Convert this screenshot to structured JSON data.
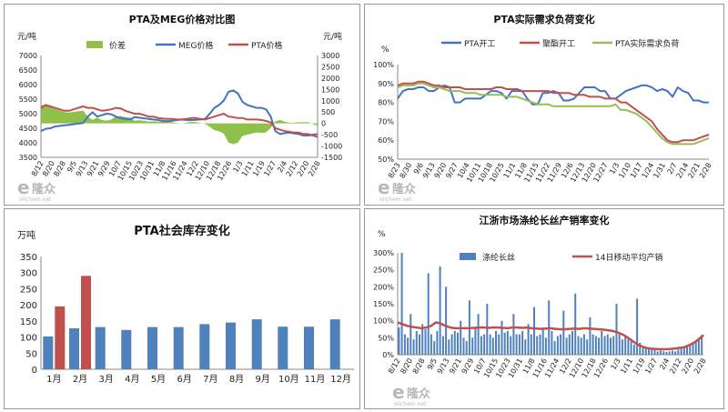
{
  "charts": {
    "price": {
      "type": "line",
      "title": "PTA及MEG价格对比图",
      "left_unit": "元/吨",
      "right_unit": "元/吨",
      "left_ylim": [
        3500,
        7000
      ],
      "left_ticks": [
        "7000",
        "6500",
        "6000",
        "5500",
        "5000",
        "4500",
        "4000",
        "3500"
      ],
      "right_ylim": [
        -1500,
        3000
      ],
      "right_ticks": [
        "3000",
        "2500",
        "2000",
        "1500",
        "1000",
        "500",
        "0",
        "-500",
        "-1000",
        "-1500"
      ],
      "x_labels": [
        "8/12",
        "8/20",
        "8/28",
        "9/5",
        "9/13",
        "9/21",
        "9/29",
        "10/7",
        "10/15",
        "10/23",
        "10/31",
        "11/8",
        "11/16",
        "11/24",
        "12/2",
        "12/10",
        "12/18",
        "12/26",
        "1/3",
        "1/11",
        "1/19",
        "1/27",
        "2/4",
        "2/12",
        "2/20",
        "2/28"
      ],
      "legend": [
        "价差",
        "MEG价格",
        "PTA价格"
      ],
      "colors": {
        "spread": "#8fc14a",
        "meg": "#4472c4",
        "pta": "#c0504d"
      },
      "series": [
        {
          "name": "MEG价格",
          "values": [
            4400,
            4480,
            4500,
            4560,
            4580,
            4600,
            4620,
            4640,
            4660,
            4680,
            4900,
            5050,
            4900,
            4950,
            5000,
            4980,
            4900,
            4850,
            4820,
            4800,
            4880,
            4860,
            4840,
            4820,
            4800,
            4780,
            4750,
            4740,
            4760,
            4780,
            4800,
            4780,
            4780,
            4790,
            4800,
            4820,
            5000,
            5200,
            5300,
            5450,
            5750,
            5800,
            5700,
            5400,
            5300,
            5250,
            5200,
            5200,
            5150,
            4900,
            4400,
            4300,
            4330,
            4350,
            4320,
            4300,
            4250,
            4250,
            4280,
            4300
          ]
        },
        {
          "name": "PTA价格",
          "values": [
            5200,
            5300,
            5250,
            5200,
            5150,
            5100,
            5100,
            5150,
            5200,
            5250,
            5200,
            5200,
            5150,
            5100,
            5120,
            5150,
            5200,
            5180,
            5100,
            5050,
            5000,
            5000,
            4950,
            4900,
            4900,
            4850,
            4830,
            4820,
            4820,
            4800,
            4800,
            4820,
            4850,
            4850,
            4820,
            4800,
            4850,
            4900,
            4950,
            5000,
            4900,
            4880,
            4850,
            4850,
            4800,
            4800,
            4800,
            4780,
            4750,
            4700,
            4500,
            4450,
            4400,
            4380,
            4350,
            4350,
            4300,
            4300,
            4250,
            4200
          ]
        },
        {
          "name": "价差",
          "values": [
            800,
            820,
            750,
            640,
            570,
            500,
            480,
            510,
            540,
            570,
            300,
            150,
            250,
            150,
            120,
            170,
            300,
            330,
            280,
            250,
            120,
            140,
            110,
            80,
            100,
            70,
            80,
            80,
            60,
            20,
            0,
            40,
            70,
            60,
            20,
            -20,
            -150,
            -300,
            -350,
            -450,
            -850,
            -920,
            -850,
            -550,
            -500,
            -450,
            -400,
            -420,
            -400,
            -200,
            100,
            150,
            70,
            30,
            30,
            50,
            50,
            50,
            -30,
            -100
          ]
        }
      ]
    },
    "demand": {
      "type": "line",
      "title": "PTA实际需求负荷变化",
      "unit": "%",
      "ylim": [
        50,
        100
      ],
      "y_ticks": [
        "100%",
        "90%",
        "80%",
        "70%",
        "60%",
        "50%"
      ],
      "x_labels": [
        "8/23",
        "8/30",
        "9/6",
        "9/13",
        "9/20",
        "9/27",
        "10/4",
        "10/11",
        "10/18",
        "10/25",
        "11/1",
        "11/8",
        "11/15",
        "11/22",
        "11/29",
        "12/6",
        "12/13",
        "12/20",
        "12/27",
        "1/3",
        "1/10",
        "1/17",
        "1/24",
        "1/31",
        "2/7",
        "2/14",
        "2/21",
        "2/28"
      ],
      "legend": [
        "PTA开工",
        "聚酯开工",
        "PTA实际需求负荷"
      ],
      "colors": {
        "pta": "#4472c4",
        "polyester": "#c0504d",
        "demand": "#9bbb59"
      },
      "series": [
        {
          "name": "PTA开工",
          "values": [
            82,
            86,
            87,
            87,
            88,
            88,
            86,
            86,
            88,
            89,
            88,
            80,
            80,
            82,
            82,
            82,
            82,
            84,
            86,
            86,
            85,
            82,
            86,
            86,
            86,
            82,
            79,
            79,
            85,
            85,
            86,
            85,
            81,
            81,
            82,
            85,
            88,
            88,
            88,
            86,
            86,
            82,
            82,
            84,
            86,
            87,
            88,
            89,
            89,
            88,
            86,
            87,
            86,
            83,
            88,
            86,
            85,
            81,
            81,
            80,
            80
          ]
        },
        {
          "name": "聚酯开工",
          "values": [
            89,
            90,
            90,
            90,
            91,
            91,
            90,
            89,
            89,
            88,
            88,
            88,
            88,
            87,
            87,
            87,
            87,
            87,
            87,
            88,
            88,
            87,
            87,
            87,
            86,
            86,
            86,
            86,
            86,
            86,
            85,
            85,
            85,
            85,
            84,
            84,
            84,
            83,
            83,
            83,
            82,
            82,
            82,
            80,
            80,
            78,
            76,
            74,
            72,
            70,
            66,
            63,
            60,
            59,
            59,
            60,
            60,
            60,
            61,
            62,
            63
          ]
        },
        {
          "name": "PTA实际需求负荷",
          "values": [
            88,
            89,
            89,
            89,
            90,
            90,
            89,
            88,
            88,
            87,
            86,
            86,
            86,
            85,
            85,
            85,
            84,
            84,
            84,
            84,
            84,
            83,
            83,
            83,
            82,
            81,
            80,
            79,
            79,
            79,
            78,
            78,
            78,
            78,
            78,
            78,
            78,
            78,
            78,
            78,
            78,
            78,
            79,
            76,
            76,
            75,
            74,
            72,
            70,
            67,
            64,
            61,
            59,
            58,
            58,
            58,
            58,
            58,
            59,
            60,
            61
          ]
        }
      ]
    },
    "inventory": {
      "type": "bar",
      "title": "PTA社会库存变化",
      "unit": "万吨",
      "ylim": [
        0,
        350
      ],
      "y_ticks": [
        "350",
        "300",
        "250",
        "200",
        "150",
        "100",
        "50",
        "0"
      ],
      "categories": [
        "1月",
        "2月",
        "3月",
        "4月",
        "5月",
        "6月",
        "7月",
        "8月",
        "9月",
        "10月",
        "11月",
        "12月"
      ],
      "colors": {
        "blue": "#4f81bd",
        "red": "#c0504d"
      },
      "series": [
        {
          "name": "blue",
          "values": [
            102,
            127,
            131,
            122,
            131,
            131,
            140,
            145,
            155,
            132,
            132,
            155
          ]
        },
        {
          "name": "red",
          "values": [
            195,
            290,
            null,
            null,
            null,
            null,
            null,
            null,
            null,
            null,
            null,
            null
          ]
        }
      ]
    },
    "sales": {
      "type": "bar",
      "title": "江浙市场涤纶长丝产销率变化",
      "unit": "%",
      "ylim": [
        0,
        300
      ],
      "y_ticks": [
        "300%",
        "250%",
        "200%",
        "150%",
        "100%",
        "50%",
        "0%"
      ],
      "x_labels": [
        "8/12",
        "8/20",
        "8/28",
        "9/5",
        "9/13",
        "9/21",
        "9/29",
        "10/7",
        "10/15",
        "10/23",
        "10/31",
        "11/8",
        "11/16",
        "11/24",
        "12/2",
        "12/10",
        "12/18",
        "12/26",
        "1/3",
        "1/11",
        "1/19",
        "1/27",
        "2/4",
        "2/12",
        "2/20",
        "2/28"
      ],
      "legend": [
        "涤纶长丝",
        "14日移动平均产销"
      ],
      "colors": {
        "bar": "#4f81bd",
        "avg": "#c0504d"
      },
      "series": [
        {
          "name": "涤纶长丝",
          "values": [
            80,
            300,
            60,
            50,
            120,
            45,
            70,
            60,
            90,
            75,
            240,
            60,
            40,
            70,
            260,
            55,
            200,
            45,
            60,
            70,
            65,
            100,
            50,
            40,
            160,
            50,
            80,
            120,
            55,
            60,
            150,
            60,
            50,
            70,
            60,
            100,
            65,
            70,
            55,
            120,
            60,
            60,
            70,
            45,
            90,
            60,
            140,
            55,
            60,
            80,
            50,
            160,
            70,
            40,
            55,
            60,
            130,
            50,
            60,
            70,
            180,
            55,
            50,
            60,
            45,
            110,
            60,
            55,
            50,
            70,
            55,
            60,
            50,
            55,
            150,
            60,
            45,
            55,
            50,
            40,
            30,
            165,
            35,
            25,
            20,
            20,
            15,
            18,
            10,
            12,
            10,
            8,
            10,
            12,
            10,
            15,
            20,
            20,
            25,
            30,
            35,
            40,
            50,
            55
          ]
        },
        {
          "name": "14日移动平均产销",
          "values": [
            95,
            90,
            85,
            82,
            80,
            78,
            80,
            85,
            95,
            92,
            85,
            80,
            78,
            78,
            78,
            78,
            79,
            80,
            80,
            79,
            80,
            80,
            79,
            78,
            80,
            80,
            79,
            80,
            78,
            77,
            76,
            77,
            78,
            76,
            75,
            75,
            76,
            77,
            76,
            78,
            77,
            76,
            75,
            74,
            72,
            70,
            66,
            60,
            52,
            42,
            32,
            25,
            20,
            18,
            17,
            16,
            16,
            17,
            18,
            20,
            22,
            28,
            35,
            45,
            58
          ]
        }
      ]
    }
  }
}
